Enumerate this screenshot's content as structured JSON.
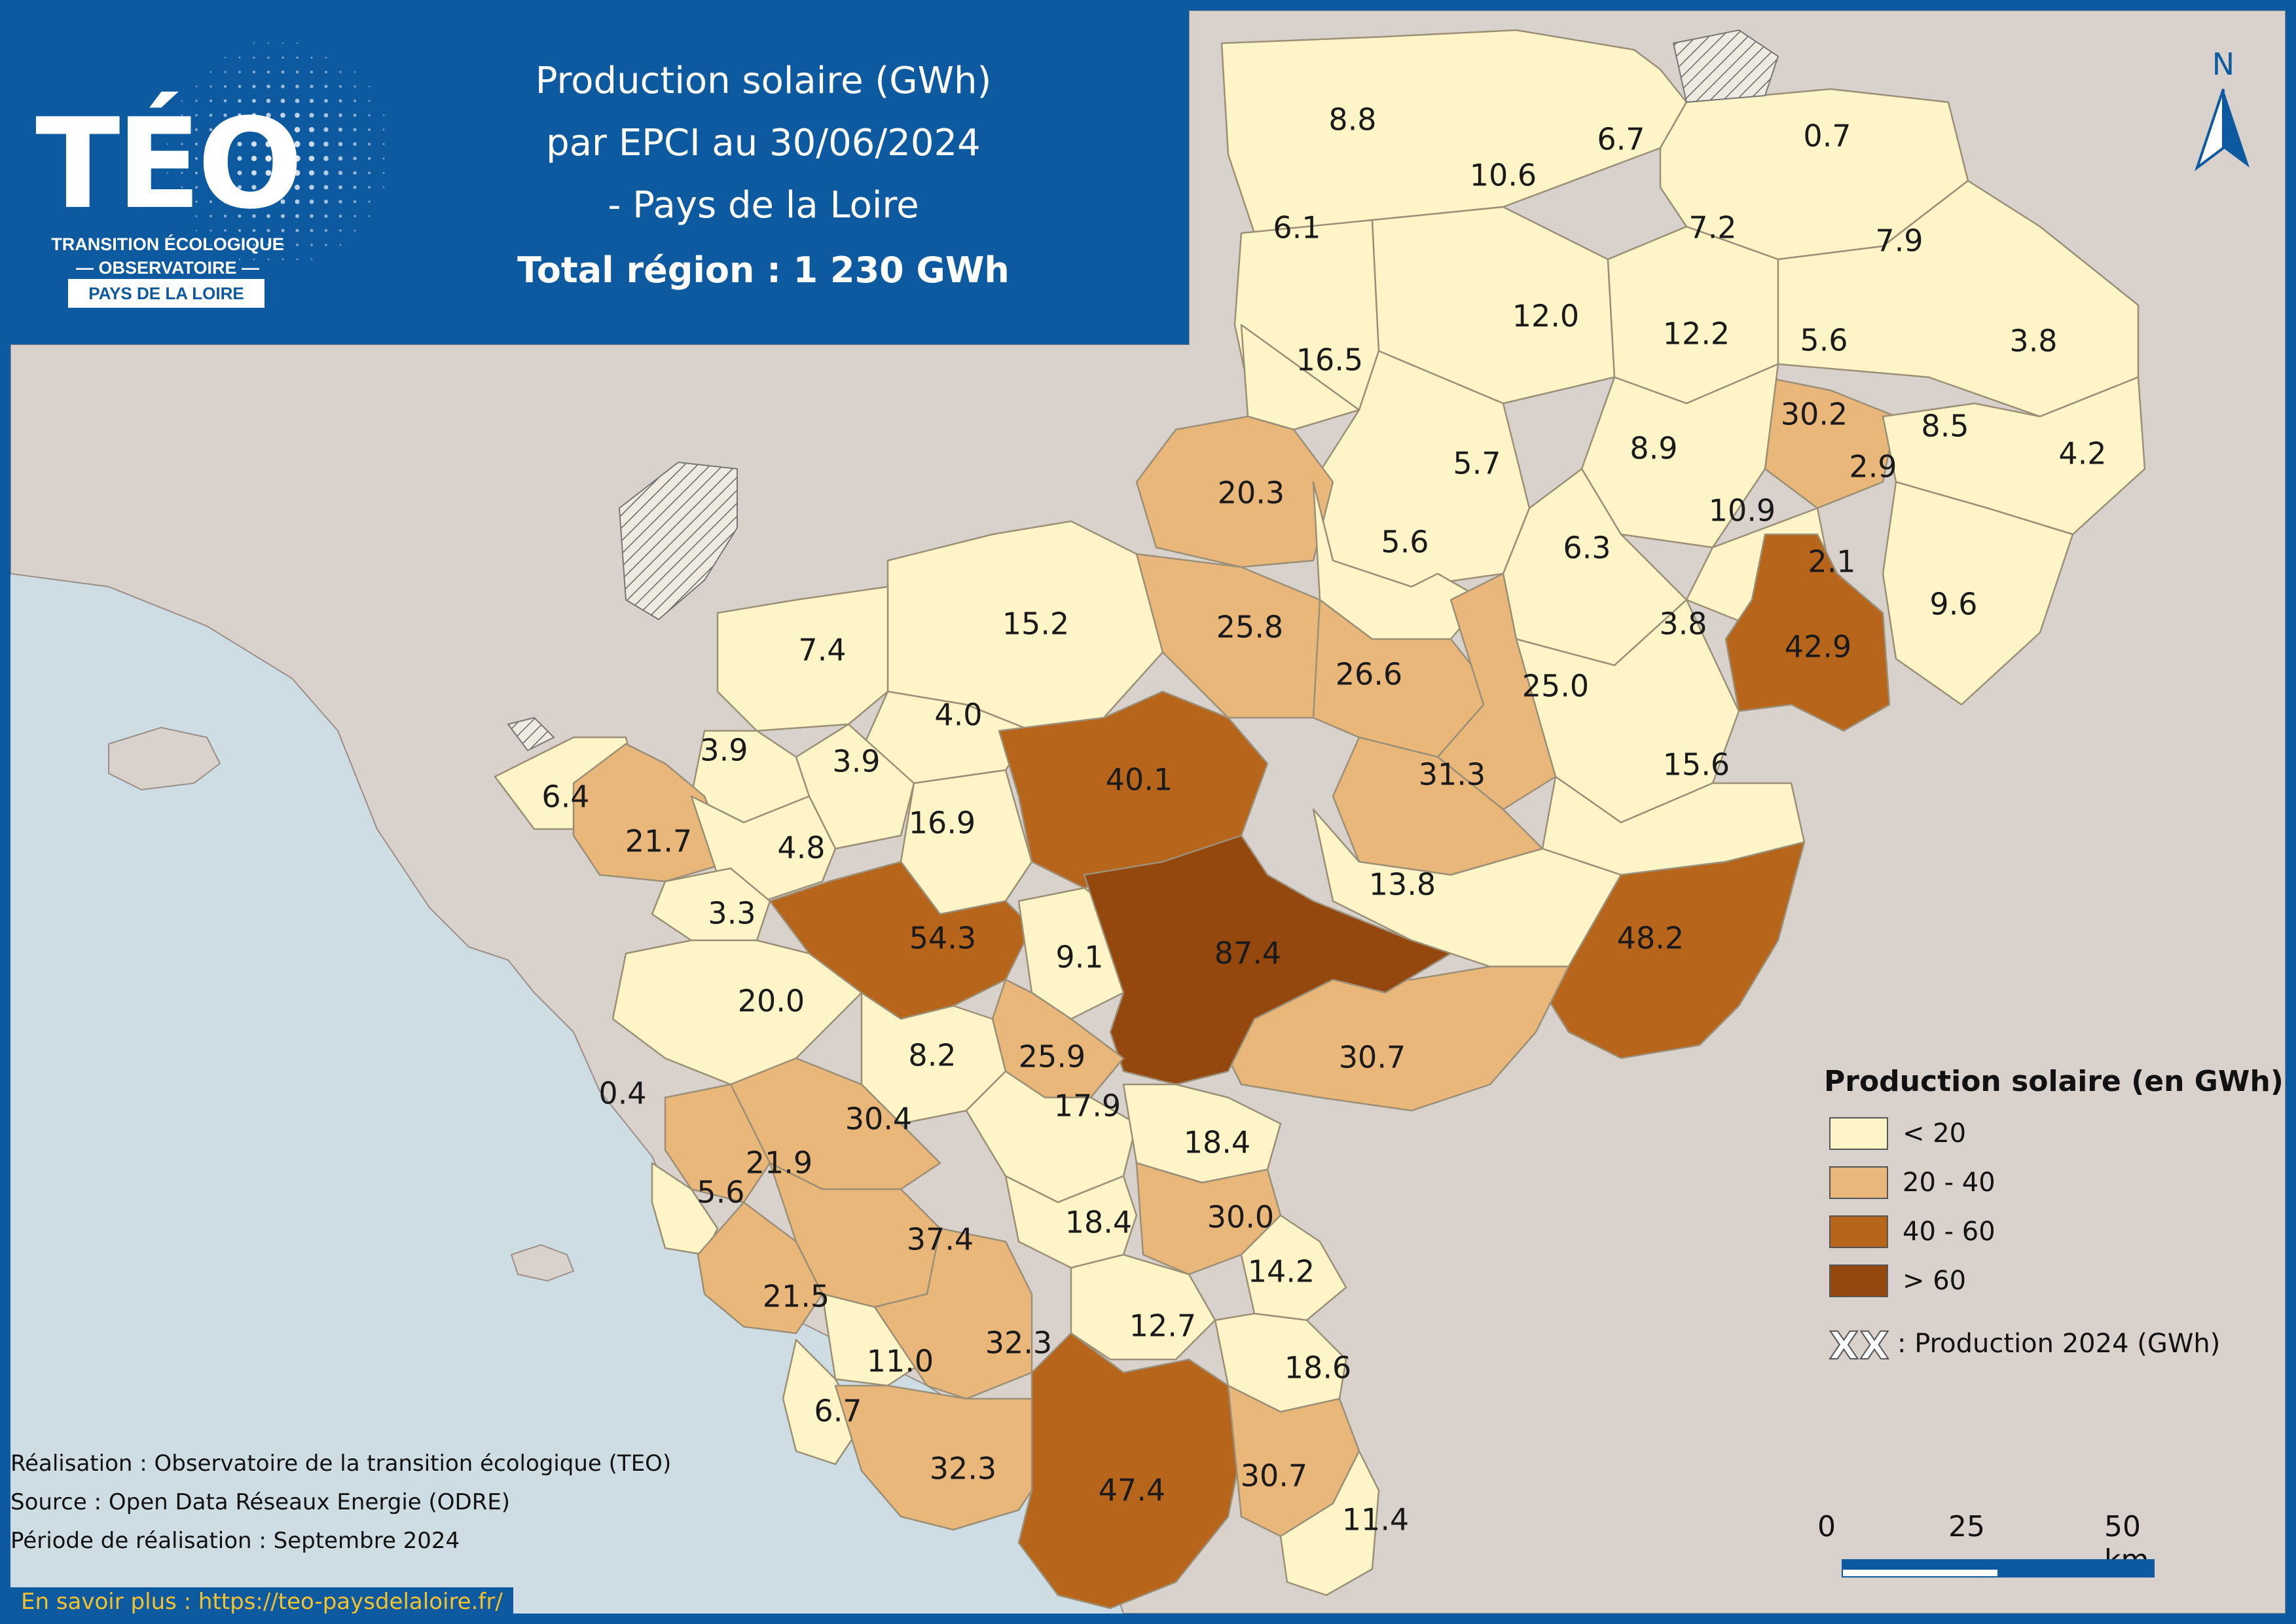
{
  "header": {
    "title_lines": [
      "Production solaire (GWh)",
      "par EPCI au 30/06/2024",
      "- Pays de la Loire"
    ],
    "total": "Total région : 1 230 GWh"
  },
  "logo": {
    "name": "TÉO",
    "subtitle_line1": "TRANSITION ÉCOLOGIQUE",
    "subtitle_line2": "— OBSERVATOIRE —",
    "region_badge": "PAYS DE LA LOIRE"
  },
  "north_arrow": {
    "label": "N"
  },
  "legend": {
    "title": "Production solaire (en GWh)",
    "classes": [
      {
        "label": "< 20",
        "color": "#fdf5c8"
      },
      {
        "label": "20 - 40",
        "color": "#e9b77a"
      },
      {
        "label": "40 - 60",
        "color": "#b8651c"
      },
      {
        "label": "> 60",
        "color": "#95480e"
      }
    ],
    "symbol_sample": "XX",
    "symbol_label": ": Production 2024 (GWh)"
  },
  "scale_bar": {
    "labels": [
      "0",
      "25",
      "50 km"
    ]
  },
  "credits": {
    "realisation": "Réalisation : Observatoire de la transition écologique (TEO)",
    "source": "Source : Open Data Réseaux Energie (ODRE)",
    "periode": "Période de réalisation : Septembre 2024"
  },
  "link_text": "En savoir plus : https://teo-paysdelaloire.fr/",
  "colors": {
    "sea": "#cddde3",
    "land_outside": "#d9d1cc",
    "class_lt20": "#fdf5c8",
    "class_20_40": "#e9b77a",
    "class_40_60": "#b8651c",
    "class_gt60": "#95480e",
    "brand_blue": "#0e5aa0"
  },
  "epci_values": [
    {
      "label": "8.8",
      "cls": 0
    },
    {
      "label": "10.6",
      "cls": 0
    },
    {
      "label": "6.7",
      "cls": 0
    },
    {
      "label": "0.7",
      "cls": "hatched"
    },
    {
      "label": "6.1",
      "cls": 0
    },
    {
      "label": "7.2",
      "cls": 0
    },
    {
      "label": "7.9",
      "cls": 0
    },
    {
      "label": "12.0",
      "cls": 0
    },
    {
      "label": "16.5",
      "cls": 0
    },
    {
      "label": "12.2",
      "cls": 0
    },
    {
      "label": "5.6",
      "cls": 0
    },
    {
      "label": "3.8",
      "cls": 0
    },
    {
      "label": "30.2",
      "cls": 1
    },
    {
      "label": "8.5",
      "cls": 0
    },
    {
      "label": "4.2",
      "cls": 0
    },
    {
      "label": "8.9",
      "cls": 0
    },
    {
      "label": "5.7",
      "cls": 0
    },
    {
      "label": "20.3",
      "cls": 1
    },
    {
      "label": "2.9",
      "cls": 0
    },
    {
      "label": "10.9",
      "cls": 0
    },
    {
      "label": "5.6",
      "cls": 0
    },
    {
      "label": "6.3",
      "cls": 0
    },
    {
      "label": "2.1",
      "cls": 0
    },
    {
      "label": "9.6",
      "cls": 0
    },
    {
      "label": "25.8",
      "cls": 1
    },
    {
      "label": "15.2",
      "cls": 0
    },
    {
      "label": "3.8",
      "cls": 0
    },
    {
      "label": "42.9",
      "cls": 2
    },
    {
      "label": "7.4",
      "cls": 0
    },
    {
      "label": "26.6",
      "cls": 1
    },
    {
      "label": "25.0",
      "cls": 1
    },
    {
      "label": "4.0",
      "cls": 0
    },
    {
      "label": "3.9",
      "cls": 0
    },
    {
      "label": "3.9",
      "cls": 0
    },
    {
      "label": "40.1",
      "cls": 2
    },
    {
      "label": "31.3",
      "cls": 1
    },
    {
      "label": "15.6",
      "cls": 0
    },
    {
      "label": "6.4",
      "cls": 0
    },
    {
      "label": "21.7",
      "cls": 1
    },
    {
      "label": "4.8",
      "cls": 0
    },
    {
      "label": "16.9",
      "cls": 0
    },
    {
      "label": "13.8",
      "cls": 0
    },
    {
      "label": "3.3",
      "cls": 0
    },
    {
      "label": "54.3",
      "cls": 2
    },
    {
      "label": "9.1",
      "cls": 0
    },
    {
      "label": "87.4",
      "cls": 3
    },
    {
      "label": "48.2",
      "cls": 2
    },
    {
      "label": "20.0",
      "cls": 0
    },
    {
      "label": "8.2",
      "cls": 0
    },
    {
      "label": "25.9",
      "cls": 1
    },
    {
      "label": "30.7",
      "cls": 1
    },
    {
      "label": "0.4",
      "cls": 0
    },
    {
      "label": "30.4",
      "cls": 1
    },
    {
      "label": "17.9",
      "cls": 0
    },
    {
      "label": "18.4",
      "cls": 0
    },
    {
      "label": "21.9",
      "cls": 1
    },
    {
      "label": "5.6",
      "cls": 0
    },
    {
      "label": "37.4",
      "cls": 1
    },
    {
      "label": "18.4",
      "cls": 0
    },
    {
      "label": "30.0",
      "cls": 1
    },
    {
      "label": "14.2",
      "cls": 0
    },
    {
      "label": "21.5",
      "cls": 1
    },
    {
      "label": "32.3",
      "cls": 1
    },
    {
      "label": "12.7",
      "cls": 0
    },
    {
      "label": "11.0",
      "cls": 0
    },
    {
      "label": "18.6",
      "cls": 0
    },
    {
      "label": "6.7",
      "cls": 0
    },
    {
      "label": "32.3",
      "cls": 1
    },
    {
      "label": "47.4",
      "cls": 2
    },
    {
      "label": "30.7",
      "cls": 1
    },
    {
      "label": "11.4",
      "cls": 0
    }
  ]
}
